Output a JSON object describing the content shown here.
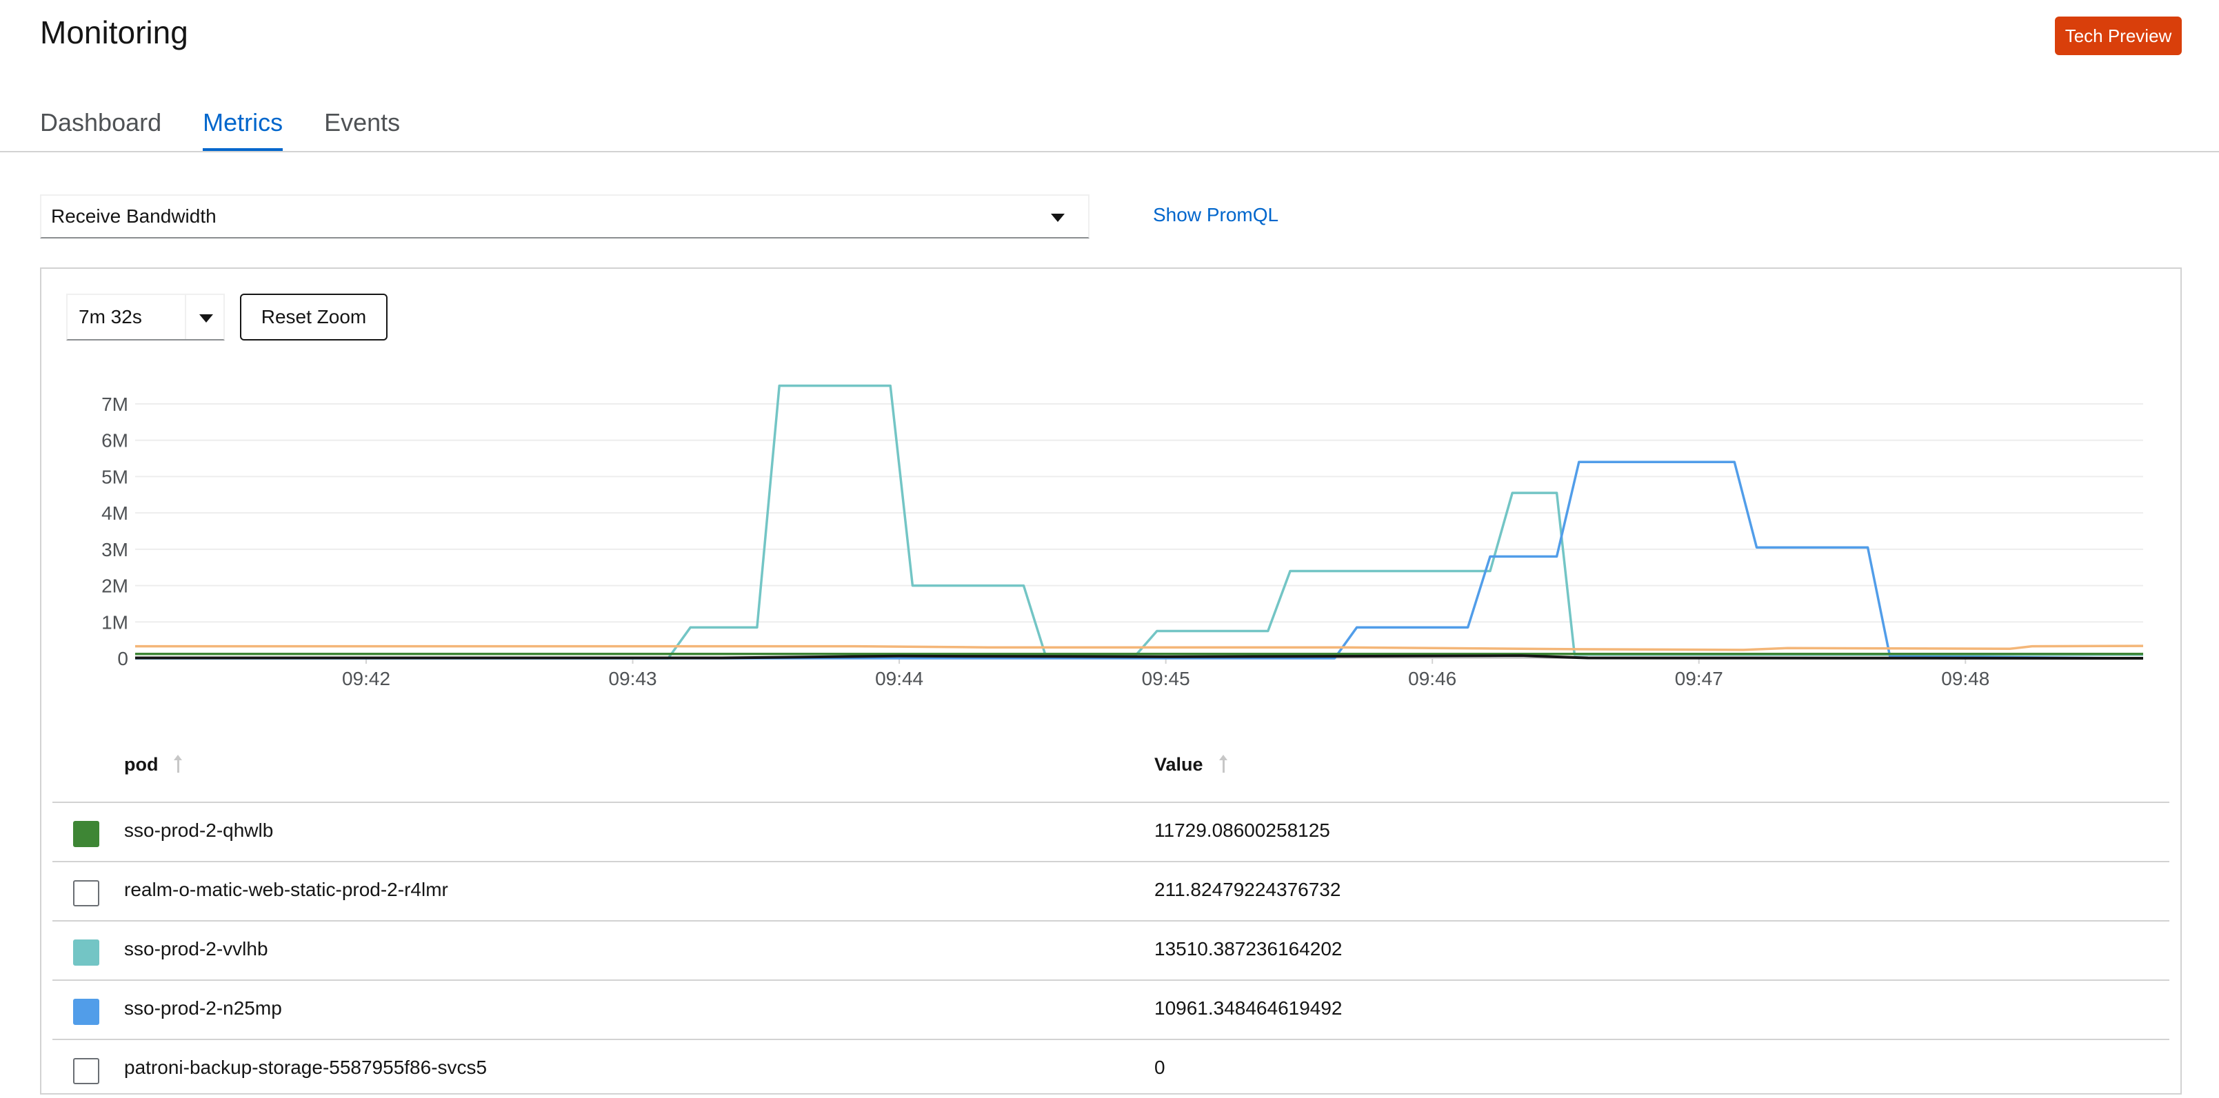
{
  "page": {
    "title": "Monitoring"
  },
  "header": {
    "tech_preview_label": "Tech Preview"
  },
  "tabs": [
    {
      "label": "Dashboard",
      "active": false
    },
    {
      "label": "Metrics",
      "active": true
    },
    {
      "label": "Events",
      "active": false
    }
  ],
  "query": {
    "selected": "Receive Bandwidth",
    "show_promql_label": "Show PromQL"
  },
  "controls": {
    "timespan": "7m 32s",
    "reset_zoom_label": "Reset Zoom"
  },
  "chart_data": {
    "type": "line",
    "x_ticks": [
      "09:42",
      "09:43",
      "09:44",
      "09:45",
      "09:46",
      "09:47",
      "09:48"
    ],
    "y_ticks": [
      "0",
      "1M",
      "2M",
      "3M",
      "4M",
      "5M",
      "6M",
      "7M"
    ],
    "x_range": [
      "09:41:08",
      "09:48:40"
    ],
    "ylim": [
      0,
      7000000
    ],
    "grid": true,
    "series": [
      {
        "color": "#73c5c5",
        "points": [
          [
            "09:41:08",
            0
          ],
          [
            "09:43:08",
            0
          ],
          [
            "09:43:13",
            850000
          ],
          [
            "09:43:28",
            850000
          ],
          [
            "09:43:33",
            7500000
          ],
          [
            "09:43:58",
            7500000
          ],
          [
            "09:44:03",
            2000000
          ],
          [
            "09:44:28",
            2000000
          ],
          [
            "09:44:33",
            50000
          ],
          [
            "09:44:53",
            50000
          ],
          [
            "09:44:58",
            750000
          ],
          [
            "09:45:23",
            750000
          ],
          [
            "09:45:28",
            2400000
          ],
          [
            "09:46:13",
            2400000
          ],
          [
            "09:46:18",
            4550000
          ],
          [
            "09:46:28",
            4550000
          ],
          [
            "09:46:32",
            100000
          ],
          [
            "09:48:40",
            100000
          ]
        ]
      },
      {
        "color": "#519de9",
        "points": [
          [
            "09:41:08",
            0
          ],
          [
            "09:45:38",
            0
          ],
          [
            "09:45:43",
            850000
          ],
          [
            "09:46:08",
            850000
          ],
          [
            "09:46:13",
            2800000
          ],
          [
            "09:46:28",
            2800000
          ],
          [
            "09:46:33",
            5400000
          ],
          [
            "09:47:08",
            5400000
          ],
          [
            "09:47:13",
            3050000
          ],
          [
            "09:47:38",
            3050000
          ],
          [
            "09:47:43",
            50000
          ],
          [
            "09:48:40",
            0
          ]
        ]
      },
      {
        "color": "#f4b678",
        "points": [
          [
            "09:41:08",
            330000
          ],
          [
            "09:42:40",
            330000
          ],
          [
            "09:43:50",
            330000
          ],
          [
            "09:44:20",
            300000
          ],
          [
            "09:45:40",
            300000
          ],
          [
            "09:46:30",
            250000
          ],
          [
            "09:47:10",
            230000
          ],
          [
            "09:47:20",
            280000
          ],
          [
            "09:48:10",
            260000
          ],
          [
            "09:48:15",
            330000
          ],
          [
            "09:48:40",
            340000
          ]
        ]
      },
      {
        "color": "#3e8635",
        "points": [
          [
            "09:41:08",
            120000
          ],
          [
            "09:48:40",
            120000
          ]
        ]
      },
      {
        "color": "#151515",
        "points": [
          [
            "09:41:08",
            10000
          ],
          [
            "09:43:20",
            10000
          ],
          [
            "09:44:00",
            60000
          ],
          [
            "09:45:00",
            40000
          ],
          [
            "09:46:20",
            70000
          ],
          [
            "09:46:35",
            10000
          ],
          [
            "09:48:40",
            0
          ]
        ]
      }
    ]
  },
  "table": {
    "columns": [
      "pod",
      "Value"
    ],
    "rows": [
      {
        "pod": "sso-prod-2-qhwlb",
        "value": "11729.08600258125",
        "color": "#3e8635",
        "enabled": true
      },
      {
        "pod": "realm-o-matic-web-static-prod-2-r4lmr",
        "value": "211.82479224376732",
        "color": "#ffffff",
        "enabled": false
      },
      {
        "pod": "sso-prod-2-vvlhb",
        "value": "13510.387236164202",
        "color": "#73c5c5",
        "enabled": true
      },
      {
        "pod": "sso-prod-2-n25mp",
        "value": "10961.348464619492",
        "color": "#519de9",
        "enabled": true
      },
      {
        "pod": "patroni-backup-storage-5587955f86-svcs5",
        "value": "0",
        "color": "#ffffff",
        "enabled": false
      }
    ]
  }
}
